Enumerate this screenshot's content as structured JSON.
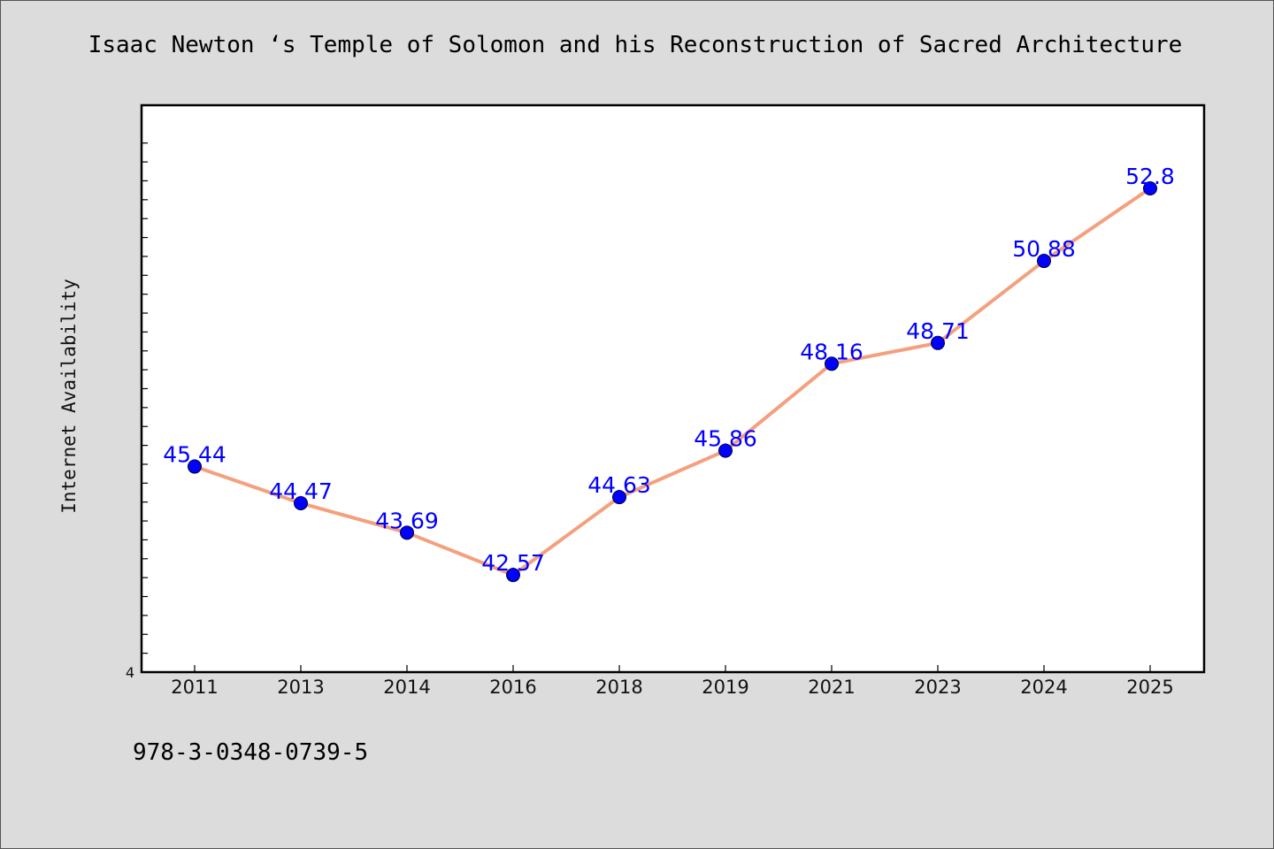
{
  "chart_data": {
    "type": "line",
    "title": "Isaac Newton ‘s Temple of Solomon and his Reconstruction of Sacred Architecture",
    "xlabel": "",
    "ylabel": "Internet Availability",
    "categories": [
      "2011",
      "2013",
      "2014",
      "2016",
      "2018",
      "2019",
      "2021",
      "2023",
      "2024",
      "2025"
    ],
    "series": [
      {
        "values": [
          45.44,
          44.47,
          43.69,
          42.57,
          44.63,
          45.86,
          48.16,
          48.71,
          50.88,
          52.8
        ],
        "data_labels": [
          "45.44",
          "44.47",
          "43.69",
          "42.57",
          "44.63",
          "45.86",
          "48.16",
          "48.71",
          "50.88",
          "52.8"
        ]
      }
    ],
    "ylim": [
      40,
      55
    ],
    "y_tick_labels": [
      "4"
    ],
    "grid": false,
    "line_color": "#f4a07e",
    "marker_color": "#0000ff",
    "label_color": "#0000ff"
  },
  "footer": {
    "isbn": "978-3-0348-0739-5"
  }
}
